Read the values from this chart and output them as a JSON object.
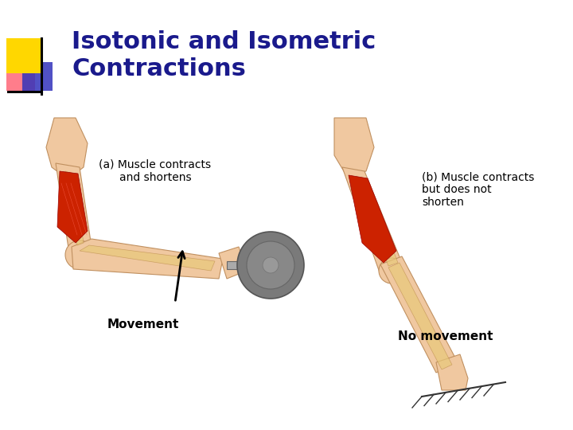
{
  "title_line1": "Isotonic and Isometric",
  "title_line2": "Contractions",
  "title_color": "#1a1a8c",
  "title_fontsize": 22,
  "bg_color": "#ffffff",
  "label_a": "(a) Muscle contracts\nand shortens",
  "label_b": "(b) Muscle contracts\nbut does not\nshorten",
  "label_movement": "Movement",
  "label_no_movement": "No movement",
  "skin": "#F0C8A0",
  "bone": "#E8C87A",
  "muscle": "#CC2200",
  "dumbbell": "#888888",
  "logo_yellow": "#FFD700",
  "logo_red": "#FF6677",
  "logo_blue": "#3333BB"
}
